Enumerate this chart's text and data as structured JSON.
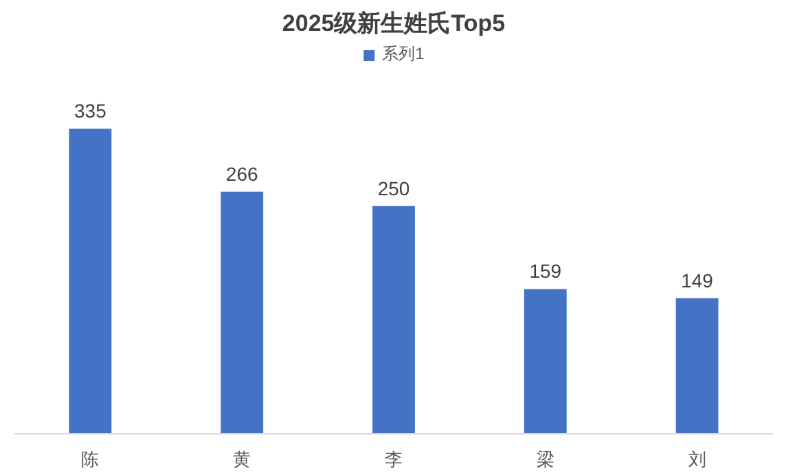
{
  "chart_data": {
    "type": "bar",
    "title": "2025级新生姓氏Top5",
    "categories": [
      "陈",
      "黄",
      "李",
      "梁",
      "刘"
    ],
    "series": [
      {
        "name": "系列1",
        "color": "#4472c4",
        "values": [
          335,
          266,
          250,
          159,
          149
        ]
      }
    ],
    "data_labels": true,
    "legend": "top",
    "grid": false
  }
}
